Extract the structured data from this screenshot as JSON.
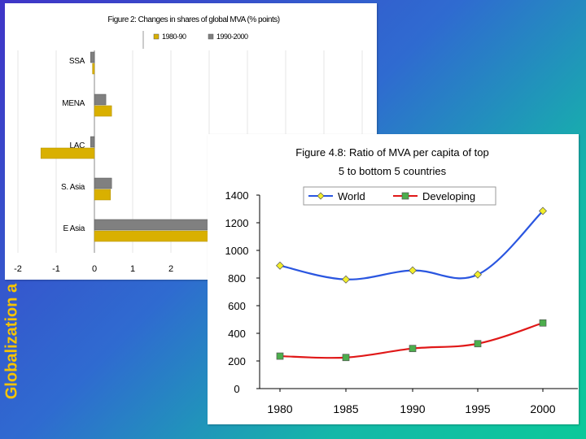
{
  "side_title": "Globalization a",
  "chart_data": [
    {
      "type": "bar",
      "orientation": "horizontal",
      "title": "Figure 2: Changes in shares of global MVA (% points)",
      "categories": [
        "SSA",
        "MENA",
        "LAC",
        "S. Asia",
        "E Asia"
      ],
      "series": [
        {
          "name": "1980-90",
          "color": "#d9b000",
          "values": [
            -0.05,
            0.45,
            -1.4,
            0.42,
            3.8
          ]
        },
        {
          "name": "1990-2000",
          "color": "#808080",
          "values": [
            -0.1,
            0.3,
            -0.1,
            0.45,
            3.2
          ]
        }
      ],
      "x_ticks": [
        "-2",
        "-1",
        "0",
        "1",
        "2"
      ],
      "xlim": [
        -2,
        7.3
      ],
      "grid": "vertical",
      "legend": "top"
    },
    {
      "type": "line",
      "title": "Figure 4.8: Ratio of MVA per capita of top 5 to bottom 5 countries",
      "x": [
        "1980",
        "1985",
        "1990",
        "1995",
        "2000"
      ],
      "series": [
        {
          "name": "World",
          "color": "#2a56e0",
          "marker_color": "#f2ee2a",
          "marker": "diamond",
          "values": [
            890,
            790,
            855,
            825,
            1285
          ]
        },
        {
          "name": "Developing",
          "color": "#e01818",
          "marker_color": "#4cae4c",
          "marker": "square",
          "values": [
            235,
            225,
            290,
            325,
            475
          ]
        }
      ],
      "y_ticks": [
        "0",
        "200",
        "400",
        "600",
        "800",
        "1000",
        "1200",
        "1400"
      ],
      "ylim": [
        0,
        1400
      ],
      "grid": "none",
      "legend": "top"
    }
  ]
}
